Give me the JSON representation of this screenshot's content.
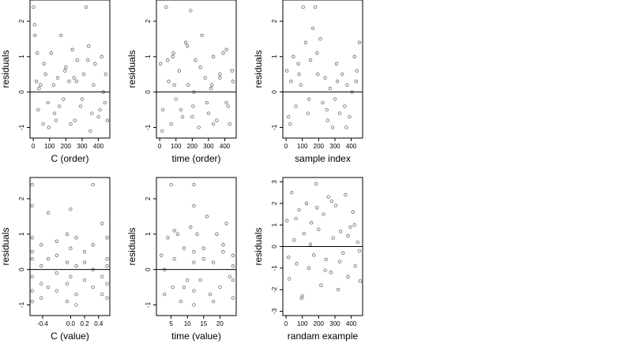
{
  "chart_data": [
    {
      "type": "scatter",
      "xlabel": "C (order)",
      "ylabel": "residuals",
      "xlim": [
        -20,
        470
      ],
      "ylim": [
        -1.3,
        2.6
      ],
      "xticks": [
        0,
        100,
        200,
        300,
        400
      ],
      "xtick_labels": [
        "0",
        "100",
        "200",
        "300",
        "400"
      ],
      "yticks": [
        -1,
        0,
        1,
        2
      ],
      "ytick_labels": [
        "-1",
        "0",
        "1",
        "2"
      ],
      "hline": 0,
      "x": [
        2,
        10,
        20,
        30,
        45,
        60,
        75,
        90,
        110,
        130,
        150,
        170,
        185,
        200,
        220,
        240,
        255,
        270,
        290,
        310,
        325,
        340,
        360,
        380,
        400,
        420,
        440,
        455,
        8,
        35,
        65,
        95,
        125,
        160,
        195,
        230,
        265,
        300,
        335,
        370,
        410,
        445,
        25,
        140,
        250,
        350,
        430
      ],
      "y": [
        2.4,
        1.6,
        0.3,
        -0.5,
        0.2,
        -0.9,
        0.5,
        -0.3,
        1.1,
        -0.6,
        0.4,
        1.6,
        -0.2,
        0.7,
        0.3,
        1.2,
        -0.8,
        0.9,
        -0.4,
        0.5,
        2.4,
        1.3,
        -0.6,
        0.8,
        -0.7,
        1.0,
        -0.3,
        -0.8,
        1.9,
        0.1,
        0.8,
        -1.0,
        0.2,
        -0.4,
        0.6,
        -0.9,
        0.3,
        -0.2,
        0.9,
        0.2,
        -0.5,
        0.5,
        1.1,
        -0.8,
        0.4,
        -1.1,
        0.0
      ]
    },
    {
      "type": "scatter",
      "xlabel": "time (order)",
      "ylabel": "residuals",
      "xlim": [
        -20,
        470
      ],
      "ylim": [
        -1.3,
        2.6
      ],
      "xticks": [
        0,
        100,
        200,
        300,
        400
      ],
      "xtick_labels": [
        "0",
        "100",
        "200",
        "300",
        "400"
      ],
      "yticks": [
        -1,
        0,
        1,
        2
      ],
      "ytick_labels": [
        "-1",
        "0",
        "1",
        "2"
      ],
      "hline": 0,
      "x": [
        5,
        20,
        40,
        55,
        70,
        85,
        100,
        120,
        140,
        160,
        175,
        190,
        205,
        220,
        240,
        260,
        280,
        300,
        315,
        330,
        350,
        370,
        390,
        410,
        430,
        450,
        15,
        50,
        90,
        130,
        170,
        210,
        250,
        290,
        330,
        370,
        410,
        445,
        80,
        200,
        320,
        420
      ],
      "y": [
        0.8,
        -0.5,
        2.4,
        0.3,
        -0.9,
        1.1,
        -0.2,
        0.6,
        -0.7,
        1.4,
        0.2,
        2.3,
        -0.4,
        0.9,
        -1.0,
        1.6,
        0.4,
        -0.6,
        0.1,
        1.0,
        -0.8,
        0.5,
        1.1,
        -0.3,
        -0.9,
        0.3,
        -1.1,
        0.9,
        0.2,
        -0.5,
        1.3,
        0.0,
        0.7,
        -0.3,
        -0.9,
        0.4,
        1.2,
        0.6,
        1.0,
        -0.7,
        0.2,
        -0.4
      ]
    },
    {
      "type": "scatter",
      "xlabel": "sample index",
      "ylabel": "residuals",
      "xlim": [
        -20,
        470
      ],
      "ylim": [
        -1.3,
        2.6
      ],
      "xticks": [
        0,
        100,
        200,
        300,
        400
      ],
      "xtick_labels": [
        "0",
        "100",
        "200",
        "300",
        "400"
      ],
      "yticks": [
        -1,
        0,
        1,
        2
      ],
      "ytick_labels": [
        "-1",
        "0",
        "1",
        "2"
      ],
      "hline": 0,
      "x": [
        5,
        15,
        30,
        45,
        60,
        75,
        90,
        105,
        120,
        135,
        150,
        165,
        180,
        195,
        210,
        225,
        240,
        255,
        270,
        285,
        300,
        315,
        330,
        345,
        360,
        375,
        390,
        405,
        420,
        435,
        450,
        25,
        80,
        140,
        190,
        250,
        310,
        370,
        430
      ],
      "y": [
        0.6,
        -0.7,
        0.3,
        1.0,
        -0.4,
        0.8,
        0.2,
        2.4,
        1.4,
        -0.6,
        0.9,
        1.8,
        2.4,
        0.5,
        1.5,
        -0.3,
        0.4,
        -0.8,
        0.1,
        -1.0,
        -0.2,
        0.3,
        -0.6,
        0.5,
        -0.4,
        0.2,
        -0.7,
        0.0,
        1.0,
        0.6,
        1.4,
        -0.9,
        0.5,
        -0.2,
        1.1,
        -0.5,
        0.8,
        -1.0,
        0.3
      ]
    },
    {
      "type": "scatter",
      "xlabel": "C (value)",
      "ylabel": "residuals",
      "xlim": [
        -0.58,
        0.56
      ],
      "ylim": [
        -1.3,
        2.6
      ],
      "xticks": [
        -0.4,
        0.0,
        0.2,
        0.4
      ],
      "xtick_labels": [
        "-0.4",
        "0.0",
        "0.2",
        "0.4"
      ],
      "yticks": [
        -1,
        0,
        1,
        2
      ],
      "ytick_labels": [
        "-1",
        "0",
        "1",
        "2"
      ],
      "hline": 0,
      "x": [
        -0.55,
        -0.55,
        -0.55,
        -0.55,
        -0.55,
        -0.55,
        -0.55,
        -0.55,
        -0.42,
        -0.42,
        -0.42,
        -0.42,
        -0.32,
        -0.32,
        -0.32,
        -0.2,
        -0.2,
        -0.2,
        -0.2,
        -0.05,
        -0.05,
        -0.05,
        -0.05,
        0.0,
        0.0,
        0.0,
        0.08,
        0.08,
        0.08,
        0.08,
        0.2,
        0.2,
        0.2,
        0.32,
        0.32,
        0.32,
        0.32,
        0.45,
        0.45,
        0.45,
        0.52,
        0.52,
        0.52,
        0.52,
        0.52
      ],
      "y": [
        2.4,
        1.8,
        0.9,
        0.3,
        -0.2,
        -0.6,
        -0.9,
        0.5,
        0.7,
        -0.4,
        0.1,
        -0.8,
        1.6,
        0.3,
        -0.5,
        0.8,
        -0.1,
        -0.6,
        0.4,
        1.0,
        0.2,
        -0.4,
        -0.9,
        1.7,
        0.6,
        -0.2,
        0.9,
        0.1,
        -0.7,
        -1.0,
        0.5,
        -0.3,
        0.2,
        2.4,
        0.7,
        -0.5,
        0.0,
        1.3,
        -0.2,
        -0.7,
        0.9,
        0.3,
        -0.4,
        -0.8,
        0.1
      ]
    },
    {
      "type": "scatter",
      "xlabel": "time (value)",
      "ylabel": "residuals",
      "xlim": [
        0.5,
        25
      ],
      "ylim": [
        -1.3,
        2.6
      ],
      "xticks": [
        5,
        10,
        15,
        20
      ],
      "xtick_labels": [
        "5",
        "10",
        "15",
        "20"
      ],
      "yticks": [
        -1,
        0,
        1,
        2
      ],
      "ytick_labels": [
        "-1",
        "0",
        "1",
        "2"
      ],
      "hline": 0,
      "x": [
        2,
        3,
        4,
        5,
        5.5,
        6,
        7,
        8,
        9,
        10,
        11,
        12,
        12,
        12,
        12,
        12,
        13,
        14,
        15,
        16,
        17,
        18,
        19,
        20,
        21,
        22,
        23,
        24,
        24,
        24,
        3,
        6,
        9,
        12,
        15,
        18,
        21,
        24
      ],
      "y": [
        0.4,
        -0.7,
        0.9,
        2.4,
        -0.5,
        0.3,
        1.0,
        -0.9,
        0.6,
        -0.3,
        1.2,
        2.4,
        0.5,
        -0.6,
        0.2,
        -1.0,
        1.0,
        -0.3,
        0.6,
        1.5,
        -0.7,
        0.2,
        1.0,
        -0.5,
        0.7,
        1.3,
        -0.2,
        0.4,
        -0.8,
        0.1,
        0.0,
        1.1,
        -0.5,
        1.8,
        0.3,
        -0.9,
        0.5,
        -0.3
      ]
    },
    {
      "type": "scatter",
      "xlabel": "randam example",
      "ylabel": "residuals",
      "xlim": [
        -20,
        470
      ],
      "ylim": [
        -3.2,
        3.2
      ],
      "xticks": [
        0,
        100,
        200,
        300,
        400
      ],
      "xtick_labels": [
        "0",
        "100",
        "200",
        "300",
        "400"
      ],
      "yticks": [
        -3,
        -2,
        -1,
        0,
        1,
        2,
        3
      ],
      "ytick_labels": [
        "-3",
        "-2",
        "-1",
        "0",
        "1",
        "2",
        "3"
      ],
      "hline": 0,
      "x": [
        5,
        20,
        35,
        50,
        65,
        80,
        95,
        110,
        125,
        140,
        155,
        170,
        185,
        200,
        215,
        230,
        245,
        260,
        275,
        290,
        305,
        320,
        335,
        350,
        365,
        380,
        395,
        410,
        425,
        440,
        455,
        15,
        60,
        100,
        150,
        190,
        240,
        280,
        330,
        380,
        420,
        450
      ],
      "y": [
        1.2,
        -1.5,
        2.5,
        0.3,
        -0.8,
        1.7,
        -2.4,
        0.6,
        2.0,
        -1.0,
        1.1,
        -0.4,
        2.9,
        0.8,
        -1.8,
        1.5,
        -0.6,
        2.3,
        -1.2,
        0.4,
        1.9,
        -2.0,
        0.7,
        -0.3,
        2.4,
        -1.4,
        0.9,
        1.6,
        -0.9,
        0.2,
        -1.6,
        -0.5,
        1.3,
        -2.3,
        0.1,
        1.8,
        -1.1,
        2.1,
        -0.7,
        0.5,
        1.0,
        -0.2
      ]
    }
  ]
}
